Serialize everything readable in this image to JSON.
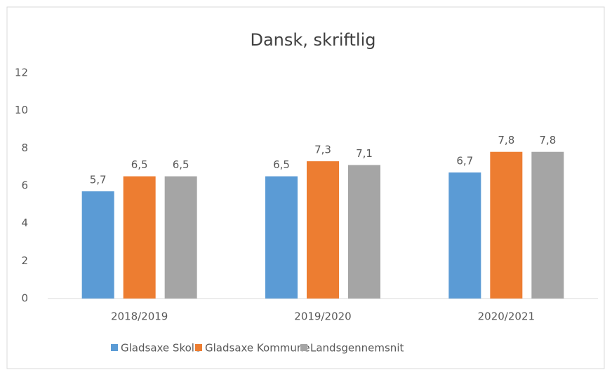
{
  "chart_data": {
    "type": "bar",
    "title": "Dansk, skriftlig",
    "categories": [
      "2018/2019",
      "2019/2020",
      "2020/2021"
    ],
    "series": [
      {
        "name": "Gladsaxe Skole",
        "color": "#5b9bd5",
        "values": [
          5.7,
          6.5,
          6.7
        ],
        "value_labels": [
          "5,7",
          "6,5",
          "6,7"
        ]
      },
      {
        "name": "Gladsaxe Kommune",
        "color": "#ed7d31",
        "values": [
          6.5,
          7.3,
          7.8
        ],
        "value_labels": [
          "6,5",
          "7,3",
          "7,8"
        ]
      },
      {
        "name": "Landsgennemsnit",
        "color": "#a5a5a5",
        "values": [
          6.5,
          7.1,
          7.8
        ],
        "value_labels": [
          "6,5",
          "7,1",
          "7,8"
        ]
      }
    ],
    "ylim": [
      0,
      12
    ],
    "yticks": [
      0,
      2,
      4,
      6,
      8,
      10,
      12
    ],
    "grid": false,
    "legend": "bottom"
  }
}
